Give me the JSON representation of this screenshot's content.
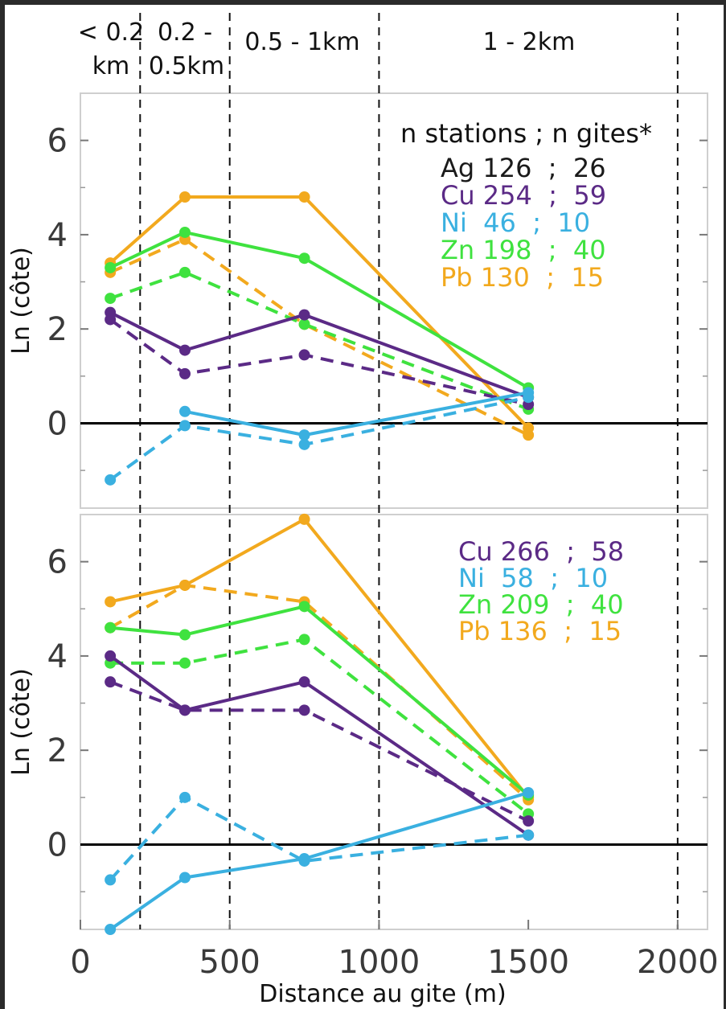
{
  "chart_data": [
    {
      "type": "line",
      "ylabel": "Ln (côte)",
      "ylim": [
        -1.8,
        7.0
      ],
      "xlim": [
        0,
        2100
      ],
      "yticks": [
        "0",
        "2",
        "4",
        "6"
      ],
      "legend_header": "n stations ;  n gites*",
      "legend": [
        {
          "element": "Ag",
          "text": "Ag 126  ;  26",
          "color": "#1a1a1a"
        },
        {
          "element": "Cu",
          "text": "Cu 254  ;  59",
          "color": "#5b2a86"
        },
        {
          "element": "Ni",
          "text": "Ni  46  ;  10",
          "color": "#3ab0e0"
        },
        {
          "element": "Zn",
          "text": "Zn 198  ;  40",
          "color": "#3fe23f"
        },
        {
          "element": "Pb",
          "text": "Pb 130  ;  15",
          "color": "#f2a91e"
        }
      ],
      "series": [
        {
          "element": "Pb",
          "style": "solid",
          "color": "#f2a91e",
          "x": [
            100,
            350,
            750,
            1500
          ],
          "y": [
            3.4,
            4.8,
            4.8,
            -0.1
          ]
        },
        {
          "element": "Pb",
          "style": "dashed",
          "color": "#f2a91e",
          "x": [
            100,
            350,
            750,
            1500
          ],
          "y": [
            3.2,
            3.9,
            2.1,
            -0.25
          ]
        },
        {
          "element": "Zn",
          "style": "solid",
          "color": "#3fe23f",
          "x": [
            100,
            350,
            750,
            1500
          ],
          "y": [
            3.3,
            4.05,
            3.5,
            0.75
          ]
        },
        {
          "element": "Zn",
          "style": "dashed",
          "color": "#3fe23f",
          "x": [
            100,
            350,
            750,
            1500
          ],
          "y": [
            2.65,
            3.2,
            2.1,
            0.3
          ]
        },
        {
          "element": "Cu",
          "style": "solid",
          "color": "#5b2a86",
          "x": [
            100,
            350,
            750,
            1500
          ],
          "y": [
            2.35,
            1.55,
            2.3,
            0.55
          ]
        },
        {
          "element": "Cu",
          "style": "dashed",
          "color": "#5b2a86",
          "x": [
            100,
            350,
            750,
            1500
          ],
          "y": [
            2.2,
            1.05,
            1.45,
            0.4
          ]
        },
        {
          "element": "Ni",
          "style": "solid",
          "color": "#3ab0e0",
          "x": [
            350,
            750,
            1500
          ],
          "y": [
            0.25,
            -0.25,
            0.65
          ]
        },
        {
          "element": "Ni",
          "style": "dashed",
          "color": "#3ab0e0",
          "x": [
            100,
            350,
            750,
            1500
          ],
          "y": [
            -1.2,
            -0.05,
            -0.45,
            0.55
          ]
        }
      ]
    },
    {
      "type": "line",
      "xlabel": "Distance au gite (m)",
      "ylabel": "Ln (côte)",
      "ylim": [
        -1.8,
        7.0
      ],
      "xlim": [
        0,
        2100
      ],
      "yticks": [
        "0",
        "2",
        "4",
        "6"
      ],
      "xticks": [
        "0",
        "500",
        "1000",
        "1500",
        "2000"
      ],
      "legend": [
        {
          "element": "Cu",
          "text": "Cu 266  ;  58",
          "color": "#5b2a86"
        },
        {
          "element": "Ni",
          "text": "Ni  58  ;  10",
          "color": "#3ab0e0"
        },
        {
          "element": "Zn",
          "text": "Zn 209  ;  40",
          "color": "#3fe23f"
        },
        {
          "element": "Pb",
          "text": "Pb 136  ;  15",
          "color": "#f2a91e"
        }
      ],
      "series": [
        {
          "element": "Pb",
          "style": "solid",
          "color": "#f2a91e",
          "x": [
            100,
            350,
            750,
            1500
          ],
          "y": [
            5.15,
            5.5,
            6.9,
            1.0
          ]
        },
        {
          "element": "Pb",
          "style": "dashed",
          "color": "#f2a91e",
          "x": [
            100,
            350,
            750,
            1500
          ],
          "y": [
            4.6,
            5.5,
            5.15,
            0.95
          ]
        },
        {
          "element": "Zn",
          "style": "solid",
          "color": "#3fe23f",
          "x": [
            100,
            350,
            750,
            1500
          ],
          "y": [
            4.6,
            4.45,
            5.05,
            1.05
          ]
        },
        {
          "element": "Zn",
          "style": "dashed",
          "color": "#3fe23f",
          "x": [
            100,
            350,
            750,
            1500
          ],
          "y": [
            3.85,
            3.85,
            4.35,
            0.65
          ]
        },
        {
          "element": "Cu",
          "style": "solid",
          "color": "#5b2a86",
          "x": [
            100,
            350,
            750,
            1500
          ],
          "y": [
            4.0,
            2.85,
            3.45,
            0.2
          ]
        },
        {
          "element": "Cu",
          "style": "dashed",
          "color": "#5b2a86",
          "x": [
            100,
            350,
            750,
            1500
          ],
          "y": [
            3.45,
            2.85,
            2.85,
            0.5
          ]
        },
        {
          "element": "Ni",
          "style": "solid",
          "color": "#3ab0e0",
          "x": [
            100,
            350,
            750,
            1500
          ],
          "y": [
            -1.8,
            -0.7,
            -0.3,
            1.1
          ]
        },
        {
          "element": "Ni",
          "style": "dashed",
          "color": "#3ab0e0",
          "x": [
            100,
            350,
            750,
            1500
          ],
          "y": [
            -0.75,
            1.0,
            -0.35,
            0.2
          ]
        }
      ]
    }
  ],
  "bands": [
    {
      "lines": [
        "< 0.2",
        "km"
      ]
    },
    {
      "lines": [
        "0.2 -",
        "0.5km"
      ]
    },
    {
      "lines": [
        "0.5 - 1km"
      ]
    },
    {
      "lines": [
        "1 - 2km"
      ]
    }
  ],
  "band_boundaries_m": [
    200,
    500,
    1000,
    2000
  ]
}
